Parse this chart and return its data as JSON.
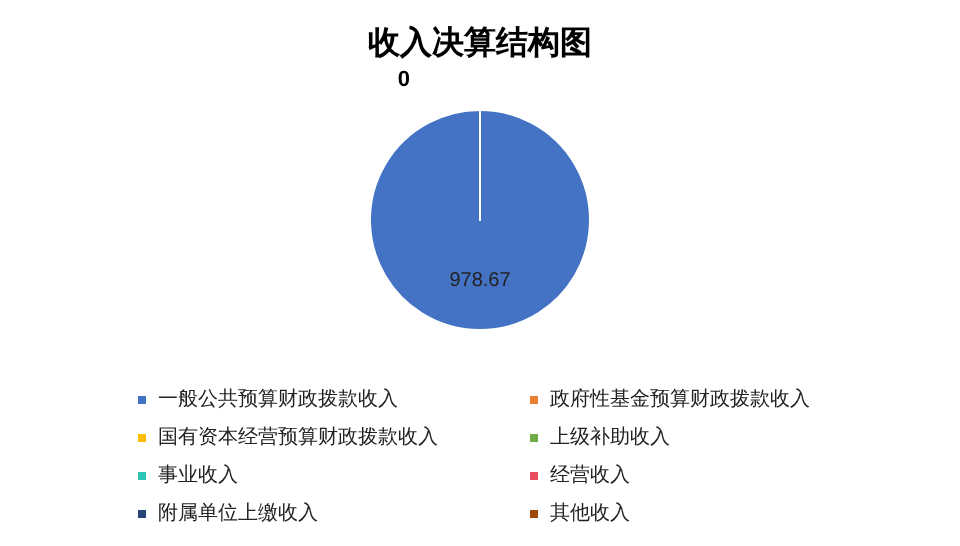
{
  "chart_data": {
    "type": "pie",
    "title": "收入决算结构图",
    "categories": [
      "一般公共预算财政拨款收入",
      "政府性基金预算财政拨款收入",
      "国有资本经营预算财政拨款收入",
      "上级补助收入",
      "事业收入",
      "经营收入",
      "附属单位上缴收入",
      "其他收入"
    ],
    "values": [
      978.67,
      0,
      0,
      0,
      0,
      0,
      0,
      0
    ],
    "colors": [
      "#4472c4",
      "#ed7d31",
      "#ffc000",
      "#70ad47",
      "#2ec4b6",
      "#e84c5d",
      "#264478",
      "#9e480e"
    ],
    "value_labels": [
      "978.67",
      "0",
      null,
      null,
      null,
      null,
      null,
      null
    ],
    "legend": "bottom"
  }
}
